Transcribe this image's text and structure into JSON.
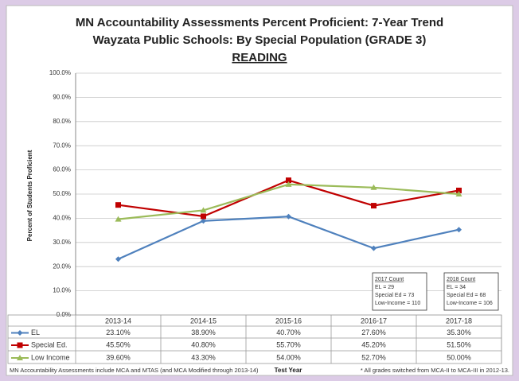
{
  "chart_data": {
    "type": "line",
    "title": [
      "MN Accountability Assessments Percent Proficient: 7-Year Trend",
      "Wayzata Public Schools: By Special Population (GRADE 3)",
      "READING"
    ],
    "y_label": "Percent of Students Proficient",
    "x_label": "Test Year",
    "categories": [
      "2013-14",
      "2014-15",
      "2015-16",
      "2016-17",
      "2017-18"
    ],
    "series": [
      {
        "name": "EL",
        "color": "#4f81bd",
        "marker": "diamond",
        "values": [
          23.1,
          38.9,
          40.7,
          27.6,
          35.3
        ],
        "value_labels": [
          "23.10%",
          "38.90%",
          "40.70%",
          "27.60%",
          "35.30%"
        ]
      },
      {
        "name": "Special Ed.",
        "color": "#c00000",
        "marker": "square",
        "values": [
          45.5,
          40.8,
          55.7,
          45.2,
          51.5
        ],
        "value_labels": [
          "45.50%",
          "40.80%",
          "55.70%",
          "45.20%",
          "51.50%"
        ]
      },
      {
        "name": "Low Income",
        "color": "#9bbb59",
        "marker": "triangle",
        "values": [
          39.6,
          43.3,
          54.0,
          52.7,
          50.0
        ],
        "value_labels": [
          "39.60%",
          "43.30%",
          "54.00%",
          "52.70%",
          "50.00%"
        ]
      }
    ],
    "ylim": [
      0,
      100
    ],
    "yticks": [
      {
        "value": 0,
        "label": "0.0%"
      },
      {
        "value": 10,
        "label": "10.0%"
      },
      {
        "value": 20,
        "label": "20.0%"
      },
      {
        "value": 30,
        "label": "30.0%"
      },
      {
        "value": 40,
        "label": "40.0%"
      },
      {
        "value": 50,
        "label": "50.0%"
      },
      {
        "value": 60,
        "label": "60.0%"
      },
      {
        "value": 70,
        "label": "70.0%"
      },
      {
        "value": 80,
        "label": "80.0%"
      },
      {
        "value": 90,
        "label": "90.0%"
      },
      {
        "value": 100,
        "label": "100.0%"
      }
    ],
    "grid": true,
    "annotations": [
      {
        "title": "2017 Count",
        "lines": [
          "EL = 29",
          "Special Ed = 73",
          "Low-Income = 110"
        ]
      },
      {
        "title": "2018 Count",
        "lines": [
          "EL = 34",
          "Special Ed = 68",
          "Low-Income = 106"
        ]
      }
    ],
    "footnotes": [
      "MN Accountability Assessments include MCA and MTAS (and MCA Modified through 2013-14)",
      "* All grades switched from MCA-II to MCA-III in 2012-13."
    ]
  }
}
